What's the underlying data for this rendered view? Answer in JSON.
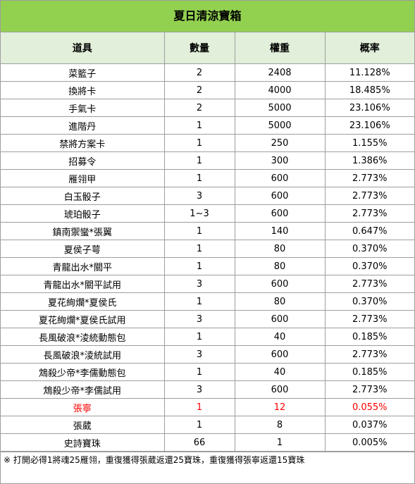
{
  "title": "夏日清涼寶箱",
  "headers": [
    "道具",
    "數量",
    "權重",
    "概率"
  ],
  "rows": [
    [
      "菜籃子",
      "2",
      "2408",
      "11.128%"
    ],
    [
      "換將卡",
      "2",
      "4000",
      "18.485%"
    ],
    [
      "手氣卡",
      "2",
      "5000",
      "23.106%"
    ],
    [
      "進階丹",
      "1",
      "5000",
      "23.106%"
    ],
    [
      "禁將方案卡",
      "1",
      "250",
      "1.155%"
    ],
    [
      "招募令",
      "1",
      "300",
      "1.386%"
    ],
    [
      "雁翎甲",
      "1",
      "600",
      "2.773%"
    ],
    [
      "白玉骰子",
      "3",
      "600",
      "2.773%"
    ],
    [
      "琥珀骰子",
      "1~3",
      "600",
      "2.773%"
    ],
    [
      "鎮南禦蠻*張翼",
      "1",
      "140",
      "0.647%"
    ],
    [
      "夏侯子萼",
      "1",
      "80",
      "0.370%"
    ],
    [
      "青龍出水*關平",
      "1",
      "80",
      "0.370%"
    ],
    [
      "青龍出水*關平試用",
      "3",
      "600",
      "2.773%"
    ],
    [
      "夏花絢爛*夏侯氏",
      "1",
      "80",
      "0.370%"
    ],
    [
      "夏花絢爛*夏侯氏試用",
      "3",
      "600",
      "2.773%"
    ],
    [
      "長風破浪*淩統動態包",
      "1",
      "40",
      "0.185%"
    ],
    [
      "長風破浪*淩統試用",
      "3",
      "600",
      "2.773%"
    ],
    [
      "鴆殺少帝*李儒動態包",
      "1",
      "40",
      "0.185%"
    ],
    [
      "鴆殺少帝*李儒試用",
      "3",
      "600",
      "2.773%"
    ],
    [
      "張寧",
      "1",
      "12",
      "0.055%"
    ],
    [
      "張葳",
      "1",
      "8",
      "0.037%"
    ],
    [
      "史詩寶珠",
      "66",
      "1",
      "0.005%"
    ]
  ],
  "highlight_row_index": 19,
  "highlight_color": "#ff0000",
  "title_bg": "#92d050",
  "header_bg": "#e2efda",
  "note": "※ 打開必得1將魂25雁翎，重復獲得張葳返還25寶珠，重復獲得張寧返還15寶珠"
}
